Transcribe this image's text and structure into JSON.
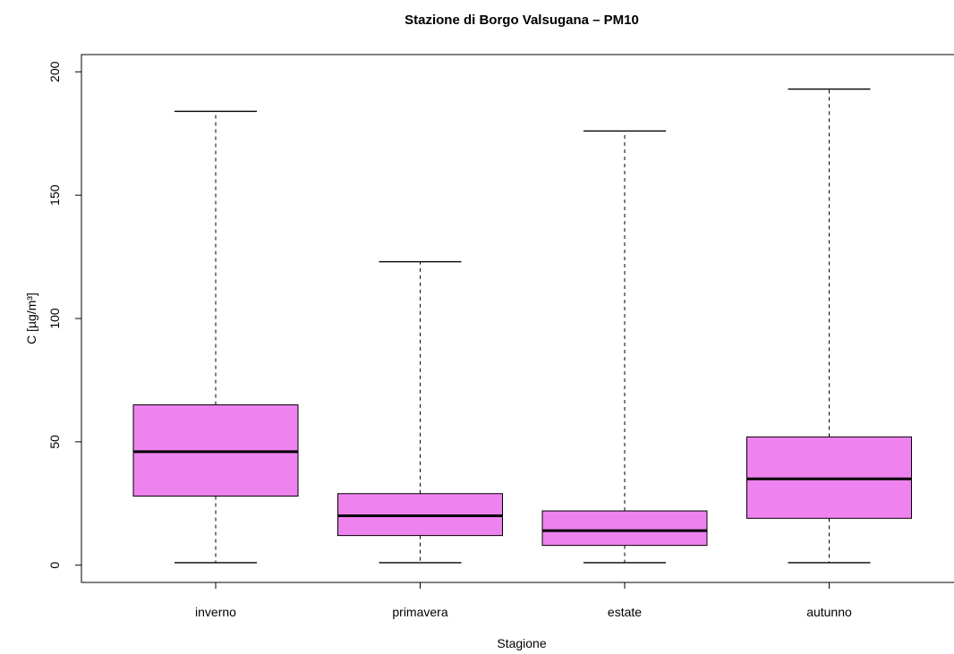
{
  "chart_data": {
    "type": "boxplot",
    "title": "Stazione di Borgo Valsugana – PM10",
    "xlabel": "Stagione",
    "ylabel": "C [µg/m³]",
    "ylim": [
      -7,
      207
    ],
    "yticks": [
      0,
      50,
      100,
      150,
      200
    ],
    "categories": [
      "inverno",
      "primavera",
      "estate",
      "autunno"
    ],
    "box_color": "#EE82EE",
    "series": [
      {
        "category": "inverno",
        "min": 1,
        "q1": 28,
        "median": 46,
        "q3": 65,
        "max": 184
      },
      {
        "category": "primavera",
        "min": 1,
        "q1": 12,
        "median": 20,
        "q3": 29,
        "max": 123
      },
      {
        "category": "estate",
        "min": 1,
        "q1": 8,
        "median": 14,
        "q3": 22,
        "max": 176
      },
      {
        "category": "autunno",
        "min": 1,
        "q1": 19,
        "median": 35,
        "q3": 52,
        "max": 193
      }
    ]
  }
}
